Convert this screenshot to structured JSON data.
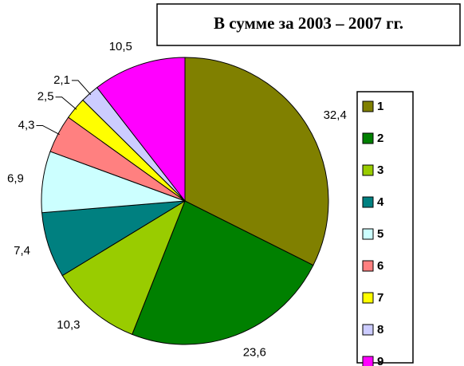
{
  "chart_data": {
    "type": "pie",
    "title": "В сумме за 2003 – 2007 гг.",
    "categories": [
      "1",
      "2",
      "3",
      "4",
      "5",
      "6",
      "7",
      "8",
      "9"
    ],
    "values": [
      32.4,
      23.6,
      10.3,
      7.4,
      6.9,
      4.3,
      2.5,
      2.1,
      10.5
    ],
    "value_labels": [
      "32,4",
      "23,6",
      "10,3",
      "7,4",
      "6,9",
      "4,3",
      "2,5",
      "2,1",
      "10,5"
    ],
    "colors": [
      "#808000",
      "#008000",
      "#99cc00",
      "#008080",
      "#ccffff",
      "#ff8080",
      "#ffff00",
      "#ccccff",
      "#ff00ff"
    ],
    "legend": "right"
  }
}
